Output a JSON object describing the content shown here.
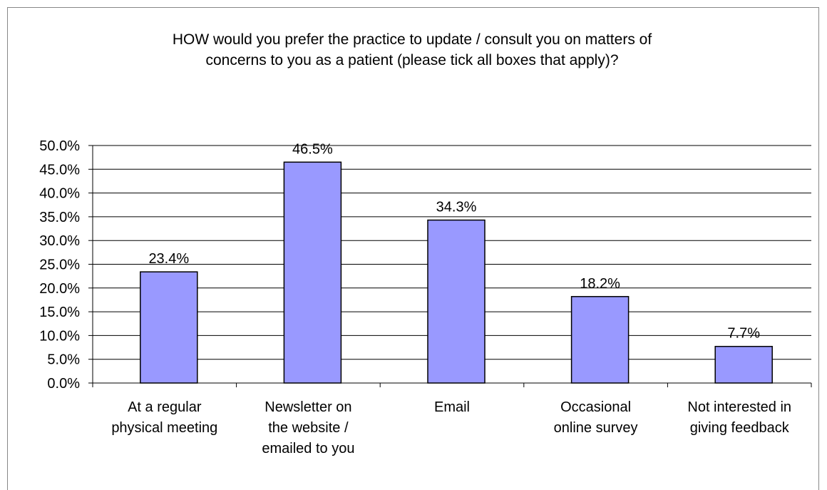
{
  "chart_data": {
    "type": "bar",
    "title": "HOW would you prefer the practice to update / consult you on matters of\nconcerns to you as a patient (please tick all boxes that apply)?",
    "categories": [
      "At a regular\nphysical meeting",
      "Newsletter on\nthe website /\nemailed to you",
      "Email",
      "Occasional\nonline survey",
      "Not interested in\ngiving feedback"
    ],
    "values": [
      23.4,
      46.5,
      34.3,
      18.2,
      7.7
    ],
    "value_labels": [
      "23.4%",
      "46.5%",
      "34.3%",
      "18.2%",
      "7.7%"
    ],
    "color": "#9999ff",
    "ylim": [
      0,
      50
    ],
    "yticks": [
      {
        "value": 0,
        "label": "0.0%"
      },
      {
        "value": 5,
        "label": "5.0%"
      },
      {
        "value": 10,
        "label": "10.0%"
      },
      {
        "value": 15,
        "label": "15.0%"
      },
      {
        "value": 20,
        "label": "20.0%"
      },
      {
        "value": 25,
        "label": "25.0%"
      },
      {
        "value": 30,
        "label": "30.0%"
      },
      {
        "value": 35,
        "label": "35.0%"
      },
      {
        "value": 40,
        "label": "40.0%"
      },
      {
        "value": 45,
        "label": "45.0%"
      },
      {
        "value": 50,
        "label": "50.0%"
      }
    ],
    "grid": true
  }
}
